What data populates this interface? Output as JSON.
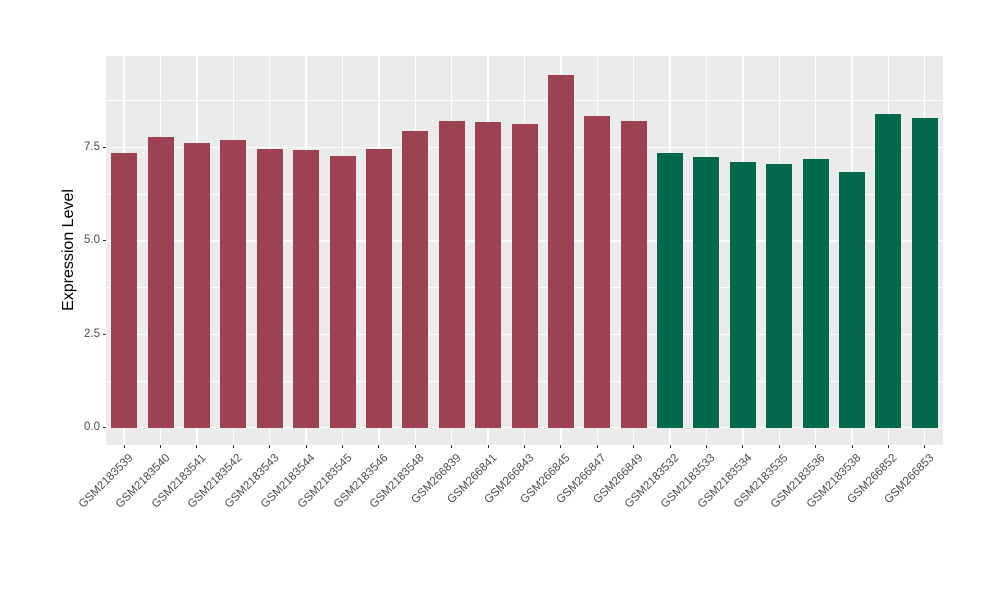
{
  "chart_data": {
    "type": "bar",
    "title": "",
    "xlabel": "",
    "ylabel": "Expression Level",
    "categories": [
      "GSM2183539",
      "GSM2183540",
      "GSM2183541",
      "GSM2183542",
      "GSM2183543",
      "GSM2183544",
      "GSM2183545",
      "GSM2183546",
      "GSM2183548",
      "GSM266839",
      "GSM266841",
      "GSM266843",
      "GSM266845",
      "GSM266847",
      "GSM266849",
      "GSM2183532",
      "GSM2183533",
      "GSM2183534",
      "GSM2183535",
      "GSM2183536",
      "GSM2183538",
      "GSM266852",
      "GSM266853"
    ],
    "values": [
      7.36,
      7.79,
      7.62,
      7.69,
      7.46,
      7.44,
      7.26,
      7.45,
      7.95,
      8.21,
      8.19,
      8.13,
      9.45,
      8.35,
      8.2,
      7.34,
      7.25,
      7.12,
      7.07,
      7.18,
      6.84,
      8.41,
      8.28
    ],
    "bar_colors": [
      "#9C4250",
      "#9C4250",
      "#9C4250",
      "#9C4250",
      "#9C4250",
      "#9C4250",
      "#9C4250",
      "#9C4250",
      "#9C4250",
      "#9C4250",
      "#9C4250",
      "#9C4250",
      "#9C4250",
      "#9C4250",
      "#9C4250",
      "#03684C",
      "#03684C",
      "#03684C",
      "#03684C",
      "#03684C",
      "#03684C",
      "#03684C",
      "#03684C"
    ],
    "groups": [
      {
        "color": "#9C4250",
        "count": 15
      },
      {
        "color": "#03684C",
        "count": 8
      }
    ],
    "yticks": [
      0.0,
      2.5,
      5.0,
      7.5
    ],
    "ytick_labels": [
      "0.0",
      "2.5",
      "5.0",
      "7.5"
    ],
    "yticks_minor": [
      1.25,
      3.75,
      6.25,
      8.75
    ],
    "ylim": [
      -0.45,
      9.95
    ],
    "legend": "none",
    "panel_bg": "#EBEBEB",
    "grid_color": "#FFFFFF",
    "tick_mark_color": "#333333",
    "tick_label_color": "#4D4D4D",
    "axis_title_color": "#000000"
  }
}
